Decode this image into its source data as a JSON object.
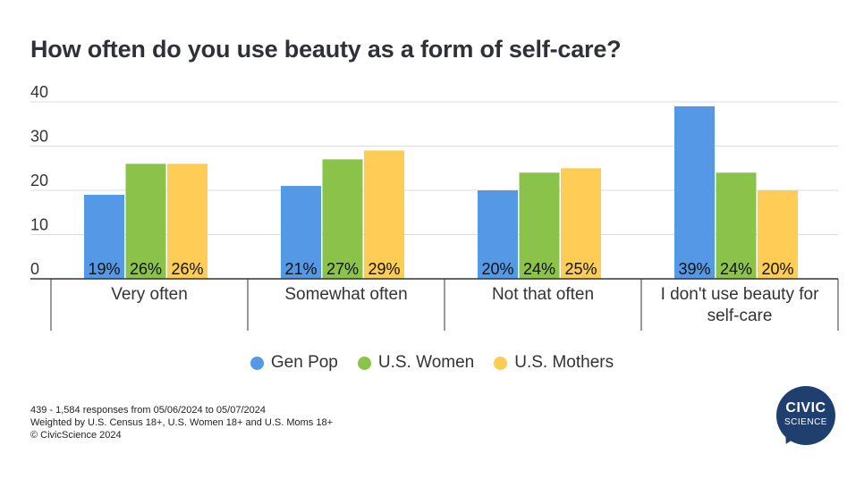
{
  "title": "How often do you use beauty as a form of self-care?",
  "chart_data": {
    "type": "bar",
    "title": "How often do you use beauty as a form of self-care?",
    "categories": [
      "Very often",
      "Somewhat often",
      "Not that often",
      "I don't use beauty for self-care"
    ],
    "series": [
      {
        "name": "Gen Pop",
        "values": [
          19,
          21,
          20,
          39
        ],
        "color": "#5599e6"
      },
      {
        "name": "U.S. Women",
        "values": [
          26,
          27,
          24,
          24
        ],
        "color": "#8bc34a"
      },
      {
        "name": "U.S. Mothers",
        "values": [
          26,
          29,
          25,
          20
        ],
        "color": "#ffcc55"
      }
    ],
    "data_labels": [
      [
        "19%",
        "26%",
        "26%"
      ],
      [
        "21%",
        "27%",
        "29%"
      ],
      [
        "20%",
        "24%",
        "25%"
      ],
      [
        "39%",
        "24%",
        "20%"
      ]
    ],
    "y_ticks": [
      0,
      10,
      20,
      30,
      40
    ],
    "ylim": [
      0,
      40
    ],
    "grid": true,
    "legend": "bottom-center"
  },
  "footer": {
    "line1": "439 - 1,584 responses from 05/06/2024 to 05/07/2024",
    "line2": "Weighted by U.S. Census 18+, U.S. Women 18+ and U.S. Moms 18+",
    "line3": "© CivicScience 2024"
  },
  "logo": {
    "line1": "CIVIC",
    "line2": "SCIENCE",
    "color": "#1f3f6e"
  }
}
